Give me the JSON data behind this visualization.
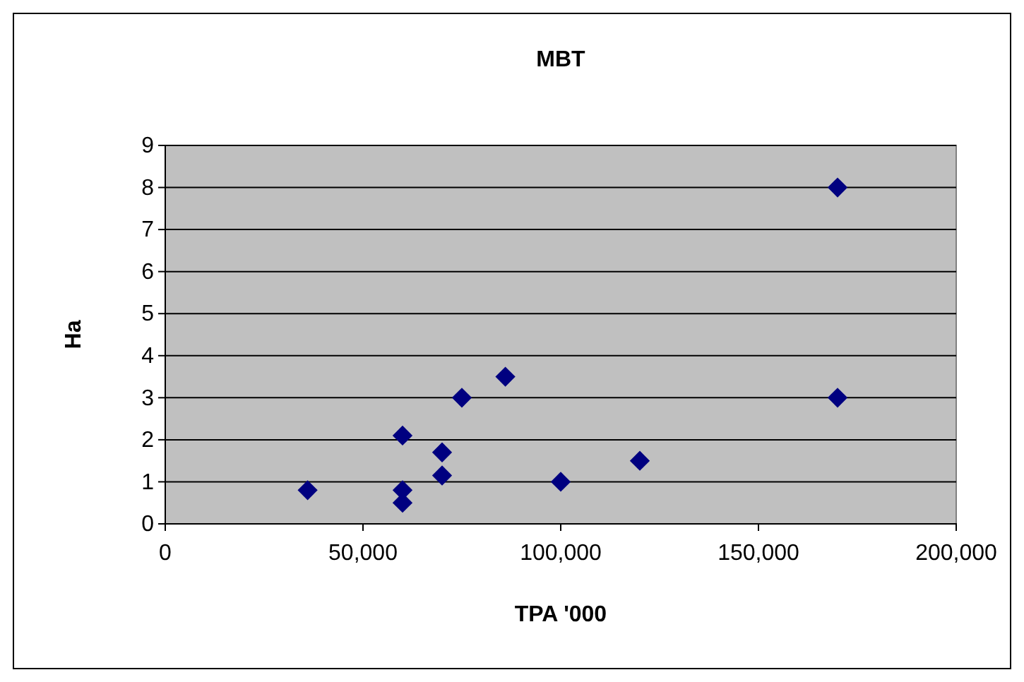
{
  "chart_data": {
    "type": "scatter",
    "title": "MBT",
    "xlabel": "TPA '000",
    "ylabel": "Ha",
    "x": [
      36000,
      60000,
      60000,
      60000,
      70000,
      70000,
      75000,
      86000,
      100000,
      120000,
      170000,
      170000
    ],
    "values": [
      0.8,
      0.5,
      0.8,
      2.1,
      1.15,
      1.7,
      3,
      3.5,
      1,
      1.5,
      8,
      3
    ],
    "color": "#000080",
    "marker": "diamond",
    "xlim": [
      0,
      200000
    ],
    "xticks": [
      {
        "value": 0,
        "label": "0"
      },
      {
        "value": 50000,
        "label": "50,000"
      },
      {
        "value": 100000,
        "label": "100,000"
      },
      {
        "value": 150000,
        "label": "150,000"
      },
      {
        "value": 200000,
        "label": "200,000"
      }
    ],
    "ylim": [
      0,
      9
    ],
    "yticks": [
      0,
      1,
      2,
      3,
      4,
      5,
      6,
      7,
      8,
      9
    ],
    "grid": "y"
  }
}
